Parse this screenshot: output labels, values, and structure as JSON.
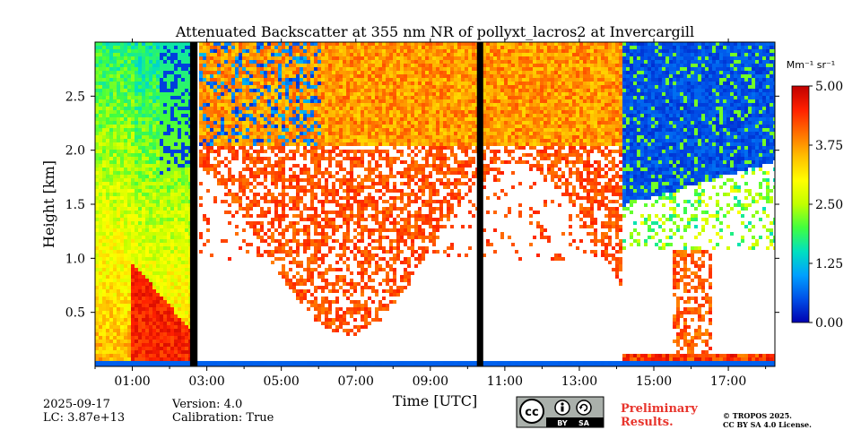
{
  "chart_data": {
    "type": "heatmap",
    "title": "Attenuated Backscatter at 355 nm NR of pollyxt_lacros2 at Invercargill",
    "xlabel": "Time [UTC]",
    "ylabel": "Height [km]",
    "xlim": [
      0,
      18.25
    ],
    "ylim": [
      0,
      3.0
    ],
    "x_ticks": [
      1,
      3,
      5,
      7,
      9,
      11,
      13,
      15,
      17
    ],
    "x_tick_labels": [
      "01:00",
      "03:00",
      "05:00",
      "07:00",
      "09:00",
      "11:00",
      "13:00",
      "15:00",
      "17:00"
    ],
    "y_ticks": [
      0.5,
      1.0,
      1.5,
      2.0,
      2.5
    ],
    "y_tick_labels": [
      "0.5",
      "1.0",
      "1.5",
      "2.0",
      "2.5"
    ],
    "colorbar": {
      "label": "Mm⁻¹ sr⁻¹",
      "vmin": 0.0,
      "vmax": 5.0,
      "ticks": [
        0.0,
        1.25,
        2.5,
        3.75,
        5.0
      ],
      "tick_labels": [
        "0.00",
        "1.25",
        "2.50",
        "3.75",
        "5.00"
      ],
      "colormap": [
        "#0000b0",
        "#0050e8",
        "#00a0ff",
        "#00e0c0",
        "#40ff40",
        "#c0ff00",
        "#ffff00",
        "#ffc000",
        "#ff7000",
        "#ff2000",
        "#c00000"
      ]
    },
    "gaps": [
      {
        "start": 2.55,
        "end": 2.75
      },
      {
        "start": 10.25,
        "end": 10.42
      }
    ],
    "regions": [
      {
        "name": "surface-layer",
        "x": [
          0,
          18.25
        ],
        "y": [
          0,
          0.05
        ],
        "value": 0.6
      },
      {
        "name": "early-aerosol-layer",
        "x": [
          0,
          2.55
        ],
        "y": [
          0.05,
          3.0
        ],
        "value": 2.0
      },
      {
        "name": "early-boundary-layer",
        "x": [
          0.5,
          2.5
        ],
        "y": [
          0.1,
          1.0
        ],
        "value": 4.2
      },
      {
        "name": "upper-cloud-band",
        "x": [
          2.75,
          10.25
        ],
        "y": [
          1.2,
          3.0
        ],
        "value": 3.7
      },
      {
        "name": "upper-cloud-band-2",
        "x": [
          10.42,
          14.0
        ],
        "y": [
          1.1,
          3.0
        ],
        "value": 3.8
      },
      {
        "name": "clear-sky-high",
        "x": [
          14.2,
          18.25
        ],
        "y": [
          1.6,
          3.0
        ],
        "value": 0.4
      },
      {
        "name": "late-cloud-layer",
        "x": [
          15.5,
          16.5
        ],
        "y": [
          0.1,
          1.2
        ],
        "value": 4.3
      }
    ]
  },
  "footer": {
    "date": "2025-09-17",
    "lc": "LC: 3.87e+13",
    "version": "Version: 4.0",
    "calibration": "Calibration: True",
    "preliminary": "Preliminary Results.",
    "license_line1": "© TROPOS 2025.",
    "license_line2": "CC BY SA 4.0 License.",
    "cc_badge": {
      "cc": "cc",
      "by": "BY",
      "sa": "SA"
    }
  },
  "colors": {
    "preliminary": "#e8342c",
    "gap": "#000000",
    "axis": "#000000"
  }
}
